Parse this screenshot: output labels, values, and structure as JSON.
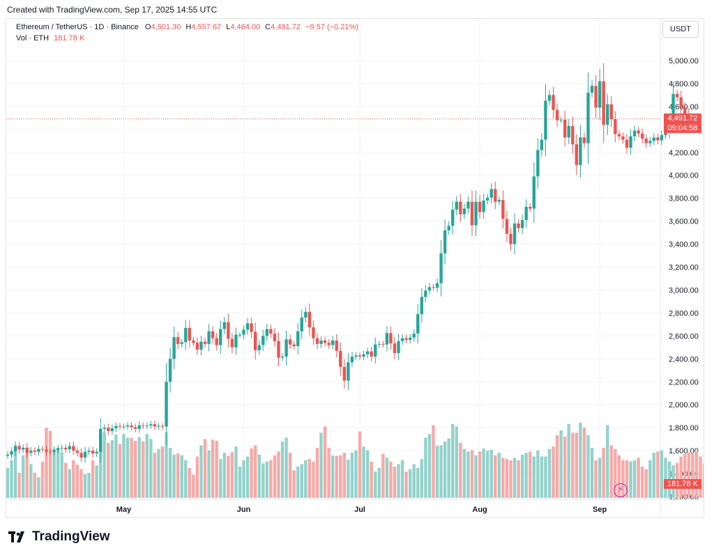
{
  "header": {
    "created": "Created with TradingView.com, Sep 17, 2025 14:55 UTC"
  },
  "legend": {
    "symbol": "Ethereum / TetherUS · 1D · Binance",
    "o_label": "O",
    "o_value": "4,501.30",
    "h_label": "H",
    "h_value": "4,557.67",
    "l_label": "L",
    "l_value": "4,464.00",
    "c_label": "C",
    "c_value": "4,491.72",
    "change": "−9.57 (−0.21%)",
    "vol_label": "Vol · ETH",
    "vol_value": "181.78 K"
  },
  "currency_button": "USDT",
  "price_tag": {
    "price": "4,491.72",
    "countdown": "09:04:58"
  },
  "volume_tag": "181.78 K",
  "brand": "TradingView",
  "colors": {
    "up": "#26a69a",
    "down": "#ef5350",
    "up_vol": "#93d2cb",
    "down_vol": "#f7a9a7"
  },
  "chart_data": {
    "type": "candlestick",
    "title": "Ethereum / TetherUS · 1D · Binance",
    "y_ticks": [
      "1,200.00",
      "1,400.00",
      "1,600.00",
      "1,800.00",
      "2,000.00",
      "2,200.00",
      "2,400.00",
      "2,600.00",
      "2,800.00",
      "3,000.00",
      "3,200.00",
      "3,400.00",
      "3,600.00",
      "3,800.00",
      "4,000.00",
      "4,200.00",
      "4,400.00",
      "4,600.00",
      "4,800.00",
      "5,000.00"
    ],
    "y_tick_values": [
      1200,
      1400,
      1600,
      1800,
      2000,
      2200,
      2400,
      2600,
      2800,
      3000,
      3200,
      3400,
      3600,
      3800,
      4000,
      4200,
      4400,
      4600,
      4800,
      5000
    ],
    "ylim": [
      1180,
      5200
    ],
    "x_labels": [
      "May",
      "Jun",
      "Jul",
      "Aug",
      "Sep"
    ],
    "x_label_dates": [
      "2025-05-01",
      "2025-06-01",
      "2025-07-01",
      "2025-08-01",
      "2025-09-01"
    ],
    "start_date": "2025-04-01",
    "current_price": 4491.72,
    "closes": [
      1565,
      1595,
      1640,
      1610,
      1625,
      1580,
      1600,
      1590,
      1615,
      1610,
      1592,
      1588,
      1605,
      1620,
      1625,
      1612,
      1640,
      1600,
      1580,
      1540,
      1590,
      1600,
      1575,
      1590,
      1790,
      1800,
      1770,
      1795,
      1815,
      1810,
      1810,
      1820,
      1805,
      1790,
      1820,
      1815,
      1818,
      1830,
      1810,
      1815,
      1810,
      2200,
      2400,
      2590,
      2530,
      2545,
      2670,
      2560,
      2540,
      2480,
      2550,
      2530,
      2640,
      2580,
      2520,
      2660,
      2720,
      2575,
      2500,
      2610,
      2610,
      2655,
      2710,
      2635,
      2475,
      2520,
      2600,
      2660,
      2620,
      2555,
      2410,
      2420,
      2570,
      2525,
      2510,
      2640,
      2760,
      2810,
      2675,
      2580,
      2530,
      2560,
      2540,
      2520,
      2560,
      2470,
      2330,
      2210,
      2370,
      2420,
      2430,
      2420,
      2440,
      2465,
      2420,
      2525,
      2530,
      2525,
      2625,
      2535,
      2450,
      2555,
      2580,
      2565,
      2585,
      2620,
      2790,
      2940,
      2995,
      3025,
      3020,
      3060,
      3320,
      3520,
      3560,
      3700,
      3770,
      3660,
      3710,
      3770,
      3565,
      3770,
      3680,
      3780,
      3805,
      3880,
      3770,
      3785,
      3620,
      3490,
      3400,
      3580,
      3540,
      3610,
      3725,
      3710,
      3990,
      4220,
      4310,
      4650,
      4700,
      4570,
      4480,
      4485,
      4330,
      4430,
      4270,
      4090,
      4330,
      4280,
      4720,
      4780,
      4590,
      4820,
      4440,
      4620,
      4490,
      4360,
      4340,
      4310,
      4240,
      4340,
      4390,
      4365,
      4320,
      4280,
      4300,
      4330,
      4305,
      4350,
      4380,
      4480,
      4710,
      4680,
      4590,
      4535,
      4491.72
    ],
    "volumes": [
      240,
      300,
      420,
      200,
      340,
      390,
      270,
      200,
      165,
      290,
      560,
      535,
      390,
      400,
      365,
      280,
      230,
      300,
      265,
      230,
      190,
      200,
      300,
      260,
      500,
      525,
      440,
      460,
      505,
      430,
      510,
      480,
      480,
      455,
      485,
      450,
      510,
      470,
      360,
      390,
      410,
      525,
      400,
      345,
      355,
      340,
      300,
      240,
      185,
      330,
      420,
      470,
      380,
      465,
      455,
      310,
      360,
      335,
      365,
      410,
      250,
      300,
      330,
      395,
      420,
      345,
      275,
      290,
      300,
      340,
      370,
      450,
      480,
      360,
      220,
      250,
      270,
      300,
      310,
      290,
      400,
      520,
      570,
      400,
      340,
      335,
      340,
      360,
      305,
      360,
      380,
      530,
      410,
      380,
      290,
      210,
      240,
      350,
      320,
      290,
      250,
      270,
      300,
      210,
      230,
      270,
      240,
      310,
      480,
      510,
      580,
      415,
      420,
      450,
      475,
      590,
      570,
      440,
      390,
      370,
      380,
      340,
      370,
      395,
      375,
      385,
      340,
      360,
      320,
      310,
      300,
      320,
      300,
      345,
      360,
      370,
      330,
      380,
      330,
      330,
      390,
      410,
      500,
      540,
      490,
      590,
      520,
      520,
      600,
      560,
      500,
      400,
      300,
      320,
      400,
      580,
      420,
      390,
      340,
      300,
      300,
      290,
      300,
      320,
      250,
      230,
      300,
      360,
      370,
      380,
      320,
      290,
      260,
      280,
      330,
      350,
      360,
      360,
      370,
      330,
      270,
      181.78
    ]
  }
}
